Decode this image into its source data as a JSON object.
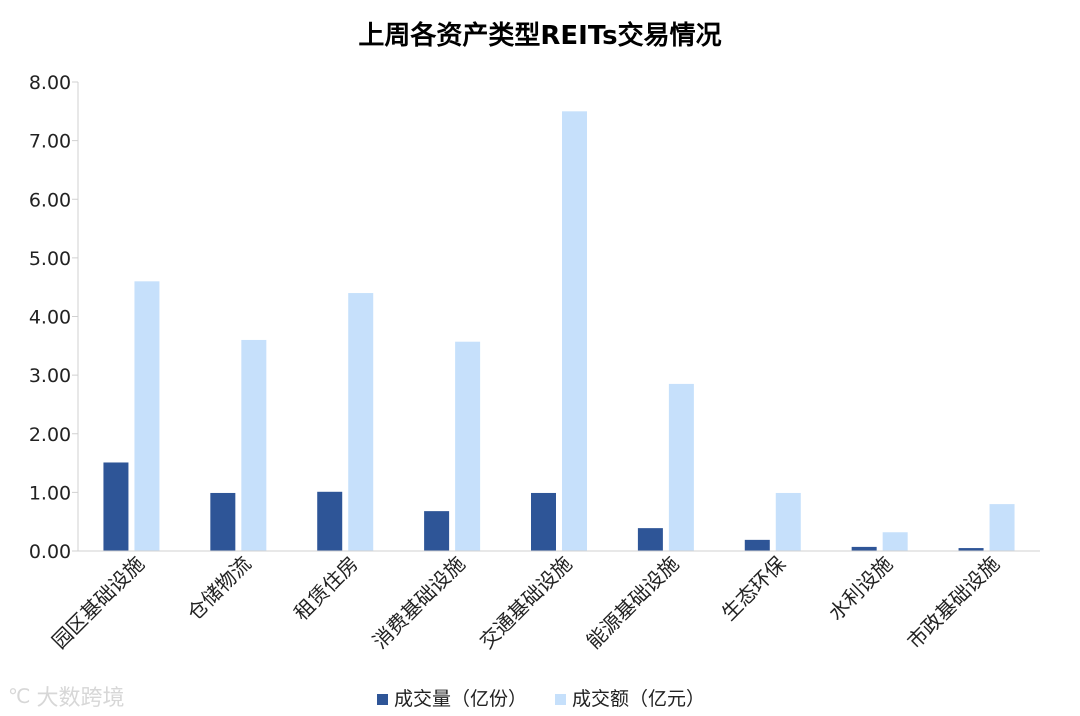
{
  "watermark": "大数跨境",
  "chart_data": {
    "type": "bar",
    "title": "上周各资产类型REITs交易情况",
    "categories": [
      "园区基础设施",
      "仓储物流",
      "租赁住房",
      "消费基础设施",
      "交通基础设施",
      "能源基础设施",
      "生态环保",
      "水利设施",
      "市政基础设施"
    ],
    "series": [
      {
        "name": "成交量（亿份）",
        "color": "#2e5597",
        "values": [
          1.51,
          0.99,
          1.01,
          0.68,
          0.99,
          0.39,
          0.19,
          0.07,
          0.05
        ]
      },
      {
        "name": "成交额（亿元）",
        "color": "#c6e0fb",
        "values": [
          4.6,
          3.6,
          4.4,
          3.57,
          7.5,
          2.85,
          0.99,
          0.32,
          0.8
        ]
      }
    ],
    "yticks": [
      "0.00",
      "1.00",
      "2.00",
      "3.00",
      "4.00",
      "5.00",
      "6.00",
      "7.00",
      "8.00"
    ],
    "ylim": [
      0,
      8
    ],
    "grid": false,
    "legend": "bottom"
  }
}
